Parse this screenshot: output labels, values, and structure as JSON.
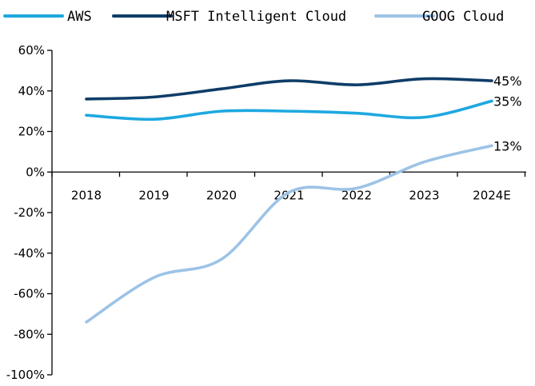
{
  "chart_data": {
    "type": "line",
    "categories": [
      "2018",
      "2019",
      "2020",
      "2021",
      "2022",
      "2023",
      "2024E"
    ],
    "series": [
      {
        "name": "AWS",
        "color": "#1ea8e0",
        "values": [
          28,
          26,
          30,
          30,
          29,
          27,
          35
        ],
        "end_label": "35%"
      },
      {
        "name": "MSFT Intelligent Cloud",
        "color": "#0f3d68",
        "values": [
          36,
          37,
          41,
          45,
          43,
          46,
          45
        ],
        "end_label": "45%"
      },
      {
        "name": "GOOG Cloud",
        "color": "#9dc3e6",
        "values": [
          -74,
          -52,
          -43,
          -10,
          -8,
          5,
          13
        ],
        "end_label": "13%"
      }
    ],
    "ylim": [
      -100,
      60
    ],
    "yticks": [
      "60%",
      "40%",
      "20%",
      "0%",
      "-20%",
      "-40%",
      "-60%",
      "-80%",
      "-100%"
    ],
    "legend_position": "top",
    "grid": false
  }
}
